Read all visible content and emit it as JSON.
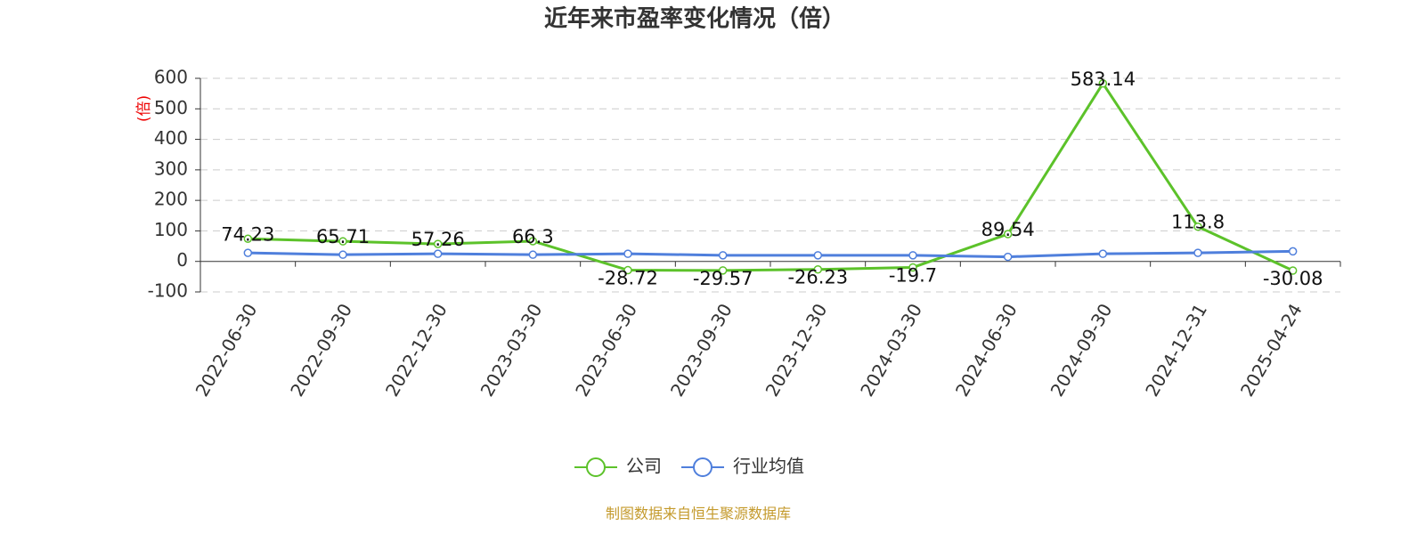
{
  "chart_data": {
    "type": "line",
    "title": "近年来市盈率变化情况（倍）",
    "y_label": "(倍)",
    "source": "制图数据来自恒生聚源数据库",
    "categories": [
      "2022-06-30",
      "2022-09-30",
      "2022-12-30",
      "2023-03-30",
      "2023-06-30",
      "2023-09-30",
      "2023-12-30",
      "2024-03-30",
      "2024-06-30",
      "2024-09-30",
      "2024-12-31",
      "2025-04-24"
    ],
    "series": [
      {
        "name": "公司",
        "color": "#5cc22a",
        "labels": true,
        "values": [
          74.23,
          65.71,
          57.26,
          66.3,
          -28.72,
          -29.57,
          -26.23,
          -19.7,
          89.54,
          583.14,
          113.8,
          -30.08
        ]
      },
      {
        "name": "行业均值",
        "color": "#4f7fdc",
        "labels": false,
        "values": [
          28,
          22,
          25,
          22,
          25,
          20,
          20,
          20,
          15,
          25,
          28,
          33
        ]
      }
    ],
    "ylim": [
      -100,
      600
    ],
    "yticks": [
      -100,
      0,
      100,
      200,
      300,
      400,
      500,
      600
    ],
    "grid": true
  }
}
